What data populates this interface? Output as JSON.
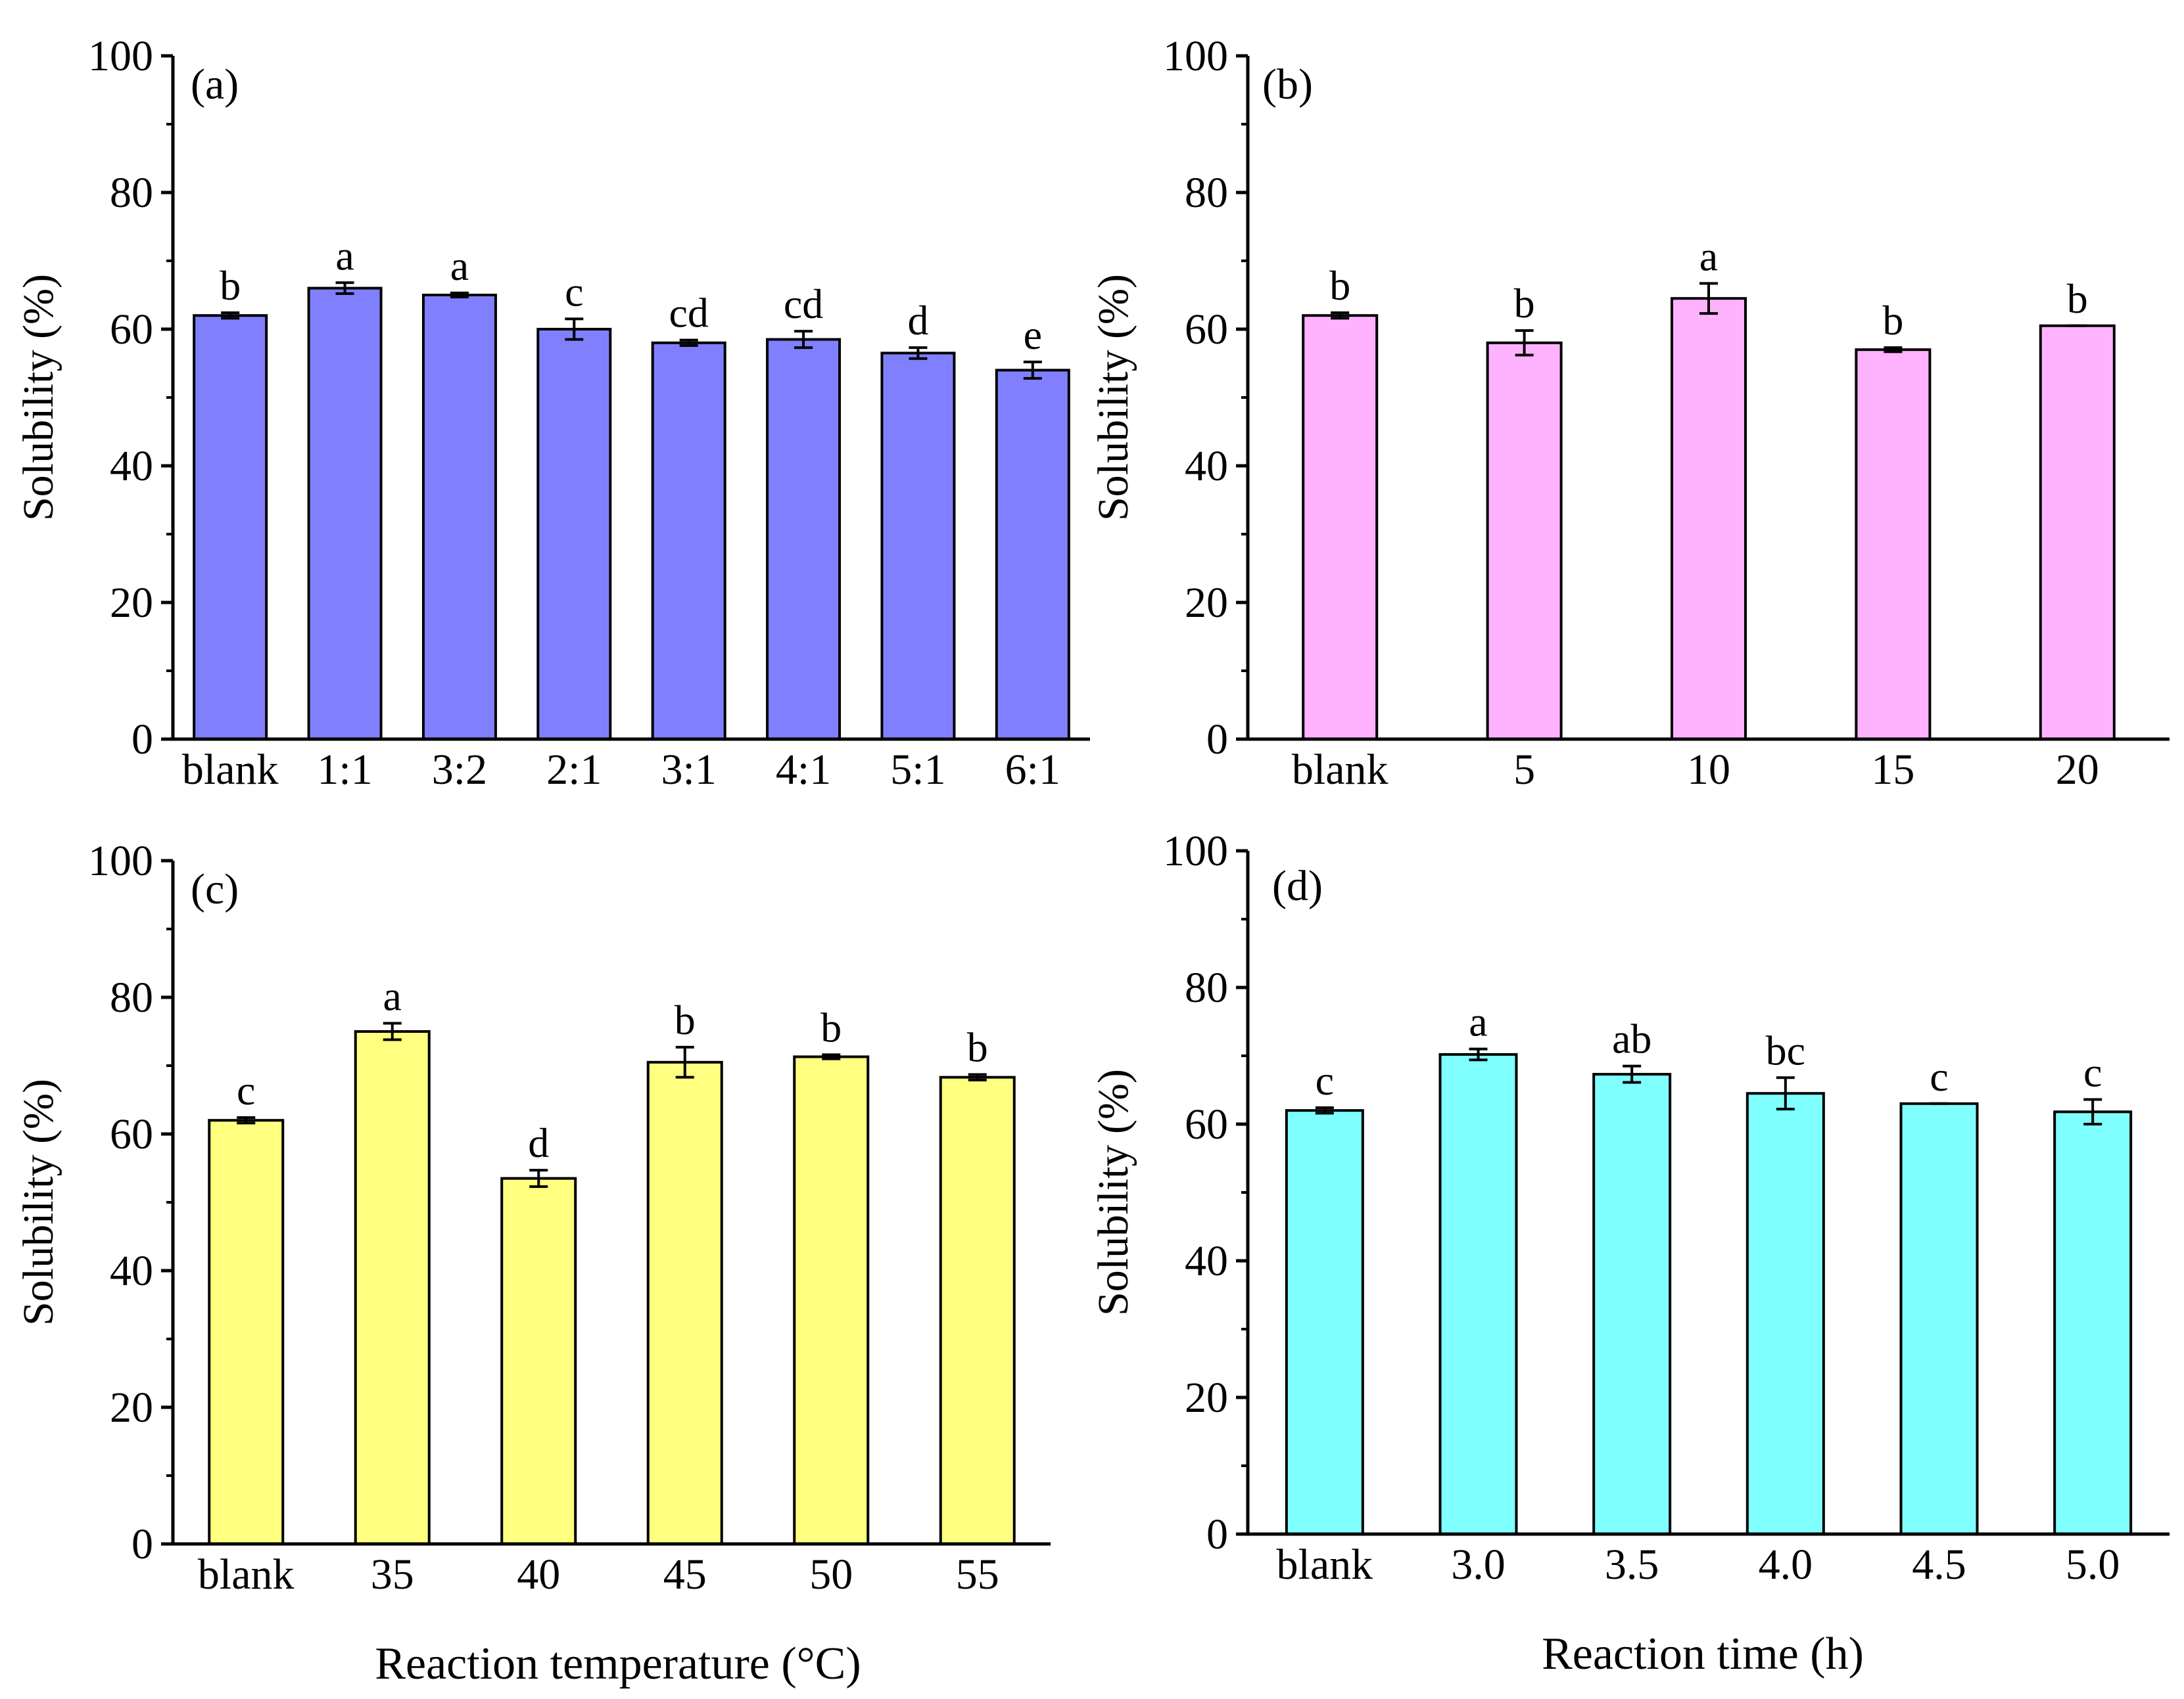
{
  "chart_data": [
    {
      "type": "bar",
      "panel_label": "(a)",
      "title": "",
      "xlabel": "",
      "ylabel": "Solubility (%)",
      "ylim": [
        0,
        100
      ],
      "yticks": [
        0,
        20,
        40,
        60,
        80,
        100
      ],
      "color": "#8080ff",
      "categories": [
        "blank",
        "1:1",
        "3:2",
        "2:1",
        "3:1",
        "4:1",
        "5:1",
        "6:1"
      ],
      "values": [
        62.0,
        66.0,
        65.0,
        60.0,
        58.0,
        58.5,
        56.5,
        54.0
      ],
      "errors": [
        0.4,
        0.8,
        0.3,
        1.5,
        0.4,
        1.2,
        0.8,
        1.2
      ],
      "significance": [
        "b",
        "a",
        "a",
        "c",
        "cd",
        "cd",
        "d",
        "e"
      ]
    },
    {
      "type": "bar",
      "panel_label": "(b)",
      "title": "",
      "xlabel": "",
      "ylabel": "Solubility (%)",
      "ylim": [
        0,
        100
      ],
      "yticks": [
        0,
        20,
        40,
        60,
        80,
        100
      ],
      "color": "#ffb3ff",
      "categories": [
        "blank",
        "5",
        "10",
        "15",
        "20"
      ],
      "values": [
        62.0,
        58.0,
        64.5,
        57.0,
        60.5
      ],
      "errors": [
        0.4,
        1.8,
        2.2,
        0.3,
        0
      ],
      "significance": [
        "b",
        "b",
        "a",
        "b",
        "b"
      ]
    },
    {
      "type": "bar",
      "panel_label": "(c)",
      "title": "",
      "xlabel": "Reaction temperature (°C)",
      "ylabel": "Solubility (%)",
      "ylim": [
        0,
        100
      ],
      "yticks": [
        0,
        20,
        40,
        60,
        80,
        100
      ],
      "color": "#ffff80",
      "categories": [
        "blank",
        "35",
        "40",
        "45",
        "50",
        "55"
      ],
      "values": [
        62.0,
        75.0,
        53.5,
        70.5,
        71.3,
        68.3
      ],
      "errors": [
        0.4,
        1.2,
        1.2,
        2.2,
        0.3,
        0.4
      ],
      "significance": [
        "c",
        "a",
        "d",
        "b",
        "b",
        "b"
      ]
    },
    {
      "type": "bar",
      "panel_label": "(d)",
      "title": "",
      "xlabel": "Reaction time (h)",
      "ylabel": "Solubility (%)",
      "ylim": [
        0,
        100
      ],
      "yticks": [
        0,
        20,
        40,
        60,
        80,
        100
      ],
      "color": "#80ffff",
      "categories": [
        "blank",
        "3.0",
        "3.5",
        "4.0",
        "4.5",
        "5.0"
      ],
      "values": [
        62.0,
        70.2,
        67.3,
        64.5,
        63.0,
        61.8
      ],
      "errors": [
        0.4,
        0.8,
        1.2,
        2.3,
        0,
        1.8
      ],
      "significance": [
        "c",
        "a",
        "ab",
        "bc",
        "c",
        "c"
      ]
    }
  ]
}
